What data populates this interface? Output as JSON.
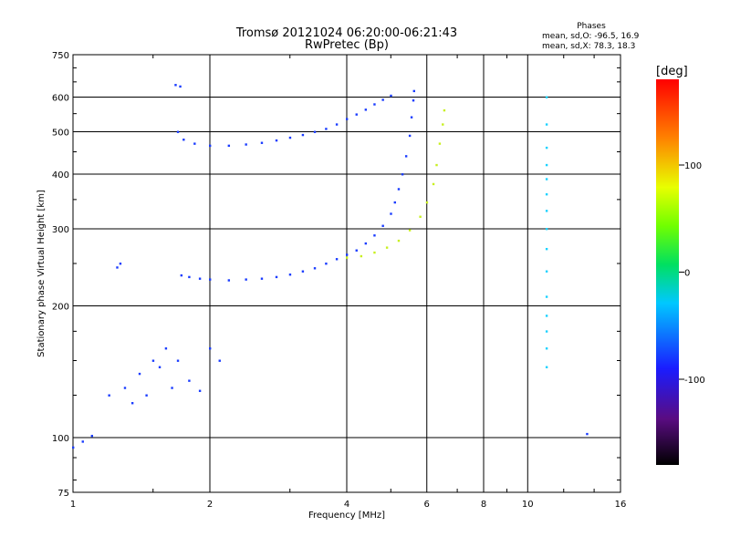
{
  "chart_data": {
    "type": "scatter",
    "title": "Tromsø 20121024 06:20:00-06:21:43",
    "subtitle": "RwPretec (Bp)",
    "xlabel": "Frequency [MHz]",
    "ylabel": "Stationary phase Virtual Height [km]",
    "x_scale": "log",
    "y_scale": "log",
    "xlim": [
      1,
      16
    ],
    "ylim": [
      75,
      750
    ],
    "x_ticks": [
      1,
      2,
      4,
      6,
      8,
      10,
      16
    ],
    "y_ticks": [
      75,
      100,
      200,
      300,
      400,
      500,
      600,
      750
    ],
    "grid": true,
    "stats": {
      "heading": "Phases",
      "line1": "mean, sd,O:  -96.5, 16.9",
      "line2": "mean, sd,X:  78.3, 18.3"
    },
    "colorbar": {
      "label": "[deg]",
      "range": [
        -180,
        180
      ],
      "ticks": [
        100,
        0,
        -100
      ],
      "colormap": "rainbow (black-purple-blue-cyan-green-yellow-red)"
    },
    "series": [
      {
        "color": "#1a3cff",
        "description_points": "O-mode F-layer trace",
        "points": [
          [
            1.73,
            235
          ],
          [
            1.8,
            233
          ],
          [
            1.9,
            231
          ],
          [
            2.0,
            230
          ],
          [
            2.2,
            229
          ],
          [
            2.4,
            230
          ],
          [
            2.6,
            231
          ],
          [
            2.8,
            233
          ],
          [
            3.0,
            236
          ],
          [
            3.2,
            240
          ],
          [
            3.4,
            244
          ],
          [
            3.6,
            250
          ],
          [
            3.8,
            256
          ],
          [
            4.0,
            262
          ],
          [
            4.2,
            268
          ],
          [
            4.4,
            278
          ],
          [
            4.6,
            290
          ],
          [
            4.8,
            305
          ],
          [
            5.0,
            325
          ],
          [
            5.1,
            345
          ],
          [
            5.2,
            370
          ],
          [
            5.3,
            400
          ],
          [
            5.4,
            440
          ],
          [
            5.5,
            490
          ],
          [
            5.55,
            540
          ],
          [
            5.6,
            590
          ],
          [
            5.62,
            620
          ]
        ]
      },
      {
        "color": "#1a3cff",
        "description_points": "F-layer second hop",
        "points": [
          [
            1.7,
            500
          ],
          [
            1.75,
            480
          ],
          [
            1.85,
            470
          ],
          [
            2.0,
            465
          ],
          [
            2.2,
            465
          ],
          [
            2.4,
            468
          ],
          [
            2.6,
            472
          ],
          [
            2.8,
            478
          ],
          [
            3.0,
            485
          ],
          [
            3.2,
            492
          ],
          [
            3.4,
            500
          ],
          [
            3.6,
            508
          ],
          [
            3.8,
            520
          ],
          [
            4.0,
            535
          ],
          [
            4.2,
            548
          ],
          [
            4.4,
            562
          ],
          [
            4.6,
            578
          ],
          [
            4.8,
            592
          ],
          [
            5.0,
            605
          ]
        ]
      },
      {
        "color": "#c8f020",
        "description_points": "X-mode trace",
        "points": [
          [
            4.0,
            258
          ],
          [
            4.3,
            260
          ],
          [
            4.6,
            265
          ],
          [
            4.9,
            272
          ],
          [
            5.2,
            282
          ],
          [
            5.5,
            298
          ],
          [
            5.8,
            320
          ],
          [
            6.0,
            345
          ],
          [
            6.2,
            380
          ],
          [
            6.3,
            420
          ],
          [
            6.4,
            470
          ],
          [
            6.5,
            520
          ],
          [
            6.55,
            560
          ]
        ]
      },
      {
        "color": "#1a3cff",
        "description_points": "E-region / sporadic cluster",
        "points": [
          [
            1.2,
            125
          ],
          [
            1.3,
            130
          ],
          [
            1.4,
            140
          ],
          [
            1.5,
            150
          ],
          [
            1.6,
            160
          ],
          [
            1.7,
            150
          ],
          [
            1.8,
            135
          ],
          [
            1.9,
            128
          ],
          [
            2.0,
            160
          ],
          [
            2.1,
            150
          ],
          [
            1.35,
            120
          ],
          [
            1.45,
            125
          ],
          [
            1.55,
            145
          ],
          [
            1.65,
            130
          ]
        ]
      },
      {
        "color": "#1ad2ff",
        "description_points": "Interference column near 11 MHz",
        "points": [
          [
            11.0,
            600
          ],
          [
            11.0,
            520
          ],
          [
            11.0,
            460
          ],
          [
            11.0,
            420
          ],
          [
            11.0,
            390
          ],
          [
            11.0,
            360
          ],
          [
            11.0,
            330
          ],
          [
            11.0,
            300
          ],
          [
            11.0,
            270
          ],
          [
            11.0,
            240
          ],
          [
            11.0,
            210
          ],
          [
            11.0,
            190
          ],
          [
            11.0,
            175
          ],
          [
            11.0,
            160
          ],
          [
            11.0,
            145
          ]
        ]
      },
      {
        "color": "#1a3cff",
        "description_points": "Low-frequency points",
        "points": [
          [
            1.0,
            95
          ],
          [
            1.05,
            98
          ],
          [
            1.1,
            101
          ],
          [
            1.25,
            245
          ],
          [
            1.27,
            250
          ],
          [
            1.68,
            640
          ],
          [
            1.72,
            635
          ],
          [
            13.5,
            102
          ]
        ]
      }
    ]
  }
}
